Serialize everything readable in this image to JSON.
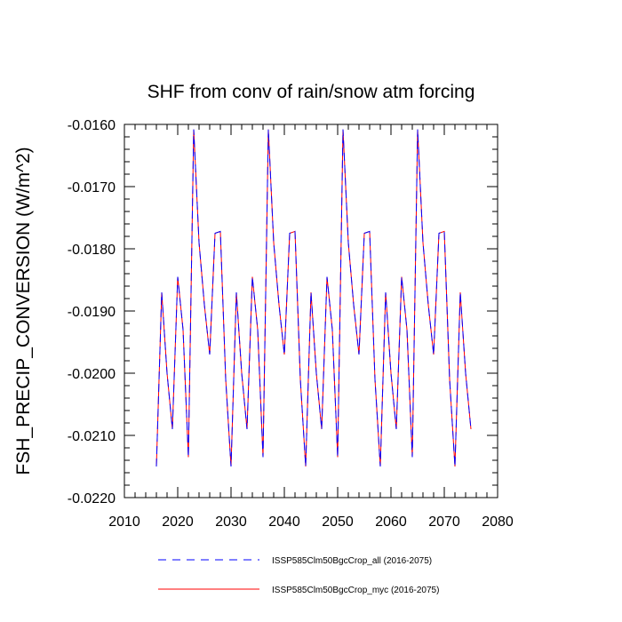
{
  "chart_data": {
    "type": "line",
    "title": "SHF from conv of rain/snow atm forcing",
    "xlabel": "",
    "ylabel": "FSH_PRECIP_CONVERSION  (W/m^2)",
    "xlim": [
      2010,
      2080
    ],
    "ylim": [
      -0.022,
      -0.016
    ],
    "xticks": [
      2010,
      2020,
      2030,
      2040,
      2050,
      2060,
      2070,
      2080
    ],
    "xtick_labels": [
      "2010",
      "2020",
      "2030",
      "2040",
      "2050",
      "2060",
      "2070",
      "2080"
    ],
    "yticks": [
      -0.022,
      -0.021,
      -0.02,
      -0.019,
      -0.018,
      -0.017,
      -0.016
    ],
    "ytick_labels": [
      "-0.0220",
      "-0.0210",
      "-0.0200",
      "-0.0190",
      "-0.0180",
      "-0.0170",
      "-0.0160"
    ],
    "grid": false,
    "legend_position": "bottom",
    "x": [
      2016,
      2017,
      2018,
      2019,
      2020,
      2021,
      2022,
      2023,
      2024,
      2025,
      2026,
      2027,
      2028,
      2029,
      2030,
      2031,
      2032,
      2033,
      2034,
      2035,
      2036,
      2037,
      2038,
      2039,
      2040,
      2041,
      2042,
      2043,
      2044,
      2045,
      2046,
      2047,
      2048,
      2049,
      2050,
      2051,
      2052,
      2053,
      2054,
      2055,
      2056,
      2057,
      2058,
      2059,
      2060,
      2061,
      2062,
      2063,
      2064,
      2065,
      2066,
      2067,
      2068,
      2069,
      2070,
      2071,
      2072,
      2073,
      2074,
      2075
    ],
    "series": [
      {
        "name": "ISSP585Clm50BgcCrop_all (2016-2075)",
        "color": "#0000ff",
        "dash": "dashed",
        "values": [
          -0.0215,
          -0.0187,
          -0.02,
          -0.0209,
          -0.01845,
          -0.0193,
          -0.02135,
          -0.01608,
          -0.0179,
          -0.0189,
          -0.0197,
          -0.01775,
          -0.01772,
          -0.0201,
          -0.0215,
          -0.0187,
          -0.02,
          -0.0209,
          -0.01845,
          -0.0193,
          -0.02135,
          -0.01608,
          -0.0179,
          -0.0189,
          -0.0197,
          -0.01775,
          -0.01772,
          -0.0201,
          -0.0215,
          -0.0187,
          -0.02,
          -0.0209,
          -0.01845,
          -0.0193,
          -0.02135,
          -0.01608,
          -0.0179,
          -0.0189,
          -0.0197,
          -0.01775,
          -0.01772,
          -0.0201,
          -0.0215,
          -0.0187,
          -0.02,
          -0.0209,
          -0.01845,
          -0.0193,
          -0.02135,
          -0.01608,
          -0.0179,
          -0.0189,
          -0.0197,
          -0.01775,
          -0.01772,
          -0.0201,
          -0.0215,
          -0.0187,
          -0.02,
          -0.0209
        ]
      },
      {
        "name": "ISSP585Clm50BgcCrop_myc (2016-2075)",
        "color": "#ff0000",
        "dash": "solid",
        "values": [
          -0.0215,
          -0.0187,
          -0.02,
          -0.0209,
          -0.01845,
          -0.0193,
          -0.02135,
          -0.01608,
          -0.0179,
          -0.0189,
          -0.0197,
          -0.01775,
          -0.01772,
          -0.0201,
          -0.0215,
          -0.0187,
          -0.02,
          -0.0209,
          -0.01845,
          -0.0193,
          -0.02135,
          -0.01608,
          -0.0179,
          -0.0189,
          -0.0197,
          -0.01775,
          -0.01772,
          -0.0201,
          -0.0215,
          -0.0187,
          -0.02,
          -0.0209,
          -0.01845,
          -0.0193,
          -0.02135,
          -0.01608,
          -0.0179,
          -0.0189,
          -0.0197,
          -0.01775,
          -0.01772,
          -0.0201,
          -0.0215,
          -0.0187,
          -0.02,
          -0.0209,
          -0.01845,
          -0.0193,
          -0.02135,
          -0.01608,
          -0.0179,
          -0.0189,
          -0.0197,
          -0.01775,
          -0.01772,
          -0.0201,
          -0.0215,
          -0.0187,
          -0.02,
          -0.0209
        ]
      }
    ]
  }
}
